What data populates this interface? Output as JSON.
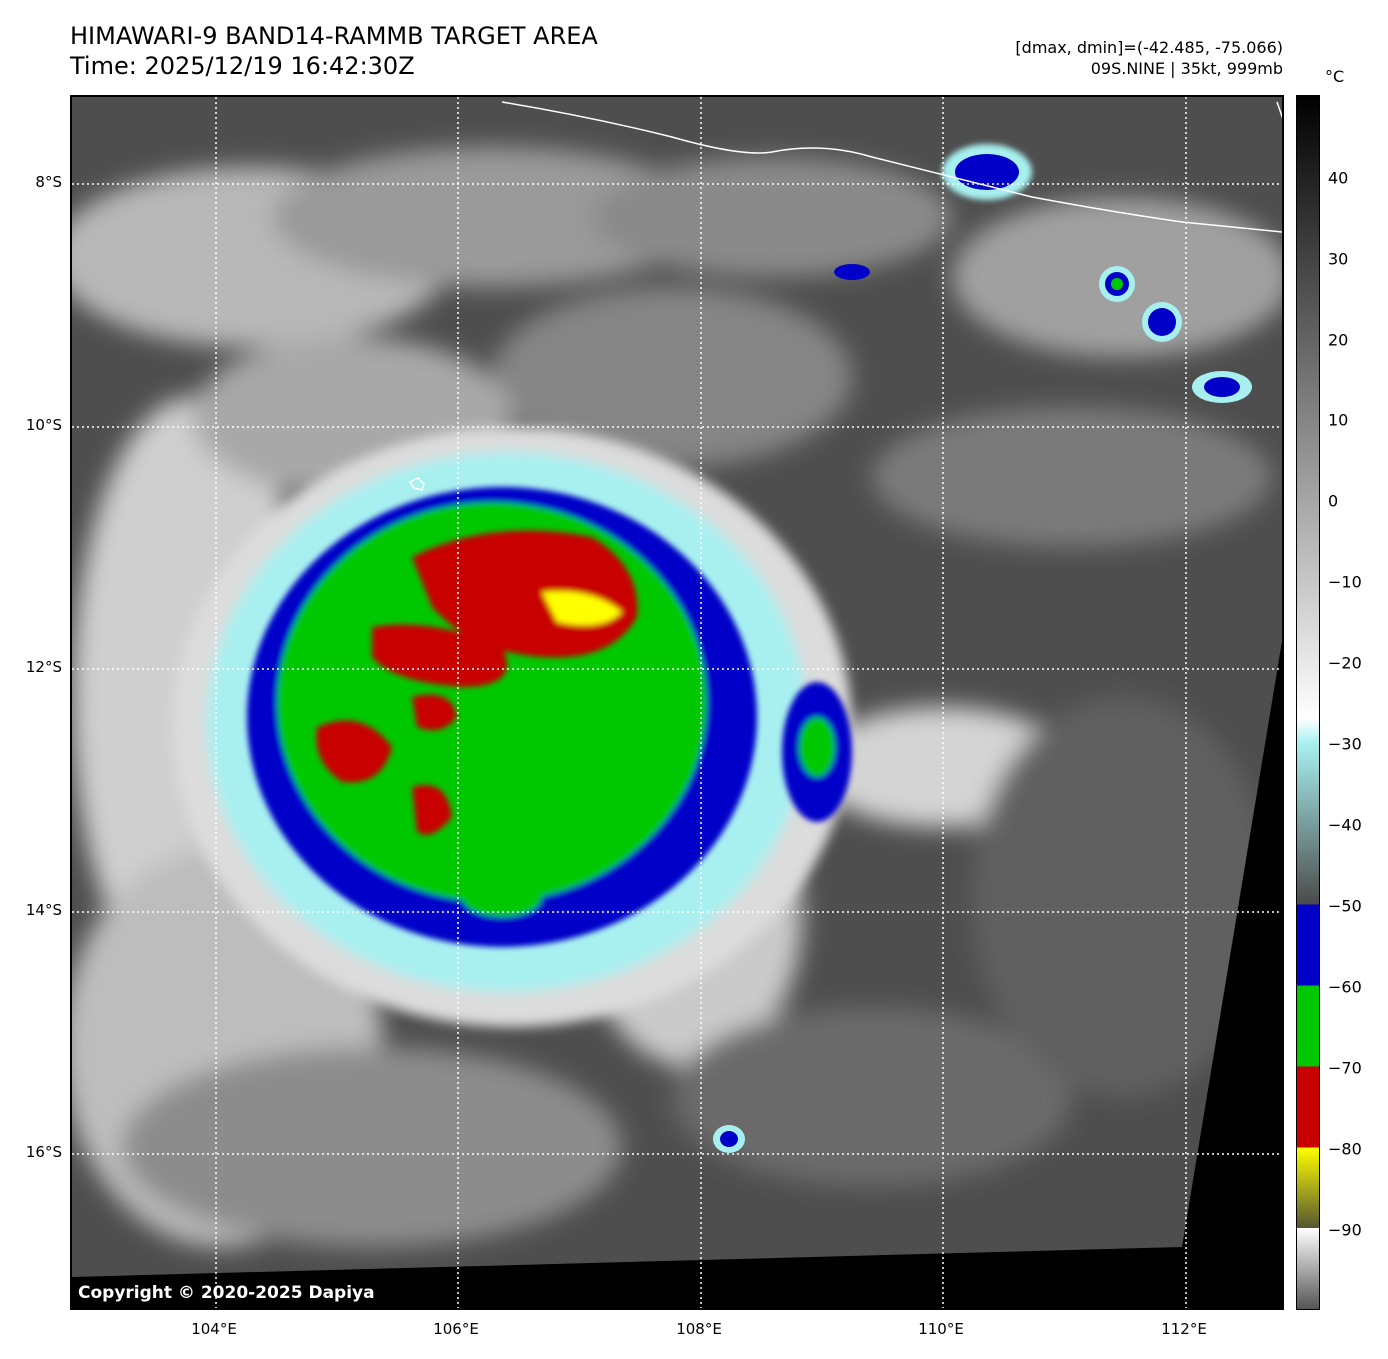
{
  "title": {
    "line1": "HIMAWARI-9 BAND14-RAMMB TARGET AREA",
    "line2": "Time: 2025/12/19 16:42:30Z"
  },
  "info": {
    "line1": "[dmax, dmin]=(-42.485, -75.066)",
    "line2": "09S.NINE | 35kt, 999mb"
  },
  "map": {
    "latitude_labels": [
      "8°S",
      "10°S",
      "12°S",
      "14°S",
      "16°S"
    ],
    "longitude_labels": [
      "104°E",
      "106°E",
      "108°E",
      "110°E",
      "112°E"
    ],
    "copyright": "Copyright © 2020-2025 Dapiya",
    "gridlines": "dotted white",
    "storm_icon": "cyclone-center-marker-icon"
  },
  "colorbar": {
    "unit": "°C",
    "ticks": [
      "40",
      "30",
      "20",
      "10",
      "0",
      "−10",
      "−20",
      "−30",
      "−40",
      "−50",
      "−60",
      "−70",
      "−80",
      "−90"
    ],
    "range": [
      50,
      -100
    ],
    "colors": {
      "gray_warm": "#000000",
      "gray_cold": "#ffffff",
      "cyan": "#a8f0f0",
      "blue": "#0000c8",
      "green": "#00c800",
      "red": "#c80000",
      "yellow": "#ffff00"
    }
  }
}
